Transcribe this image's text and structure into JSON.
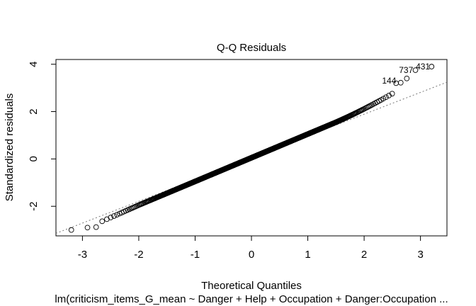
{
  "chart_data": {
    "type": "scatter",
    "title": "Q-Q Residuals",
    "xlabel": "Theoretical Quantiles",
    "ylabel": "Standardized residuals",
    "subtitle": "lm(criticism_items_G_mean ~ Danger + Help + Occupation + Danger:Occupation  ...",
    "xlim": [
      -3.47,
      3.47
    ],
    "ylim": [
      -3.25,
      4.2
    ],
    "xticks": [
      -3,
      -2,
      -1,
      0,
      1,
      2,
      3
    ],
    "yticks": [
      -2,
      0,
      2,
      4
    ],
    "xtick_labels": [
      "-3",
      "-2",
      "-1",
      "0",
      "1",
      "2",
      "3"
    ],
    "ytick_labels": [
      "-2",
      "0",
      "2",
      "4"
    ],
    "reference_line": {
      "intercept": 0.05,
      "slope": 0.92
    },
    "grid": false,
    "point_labels": [
      {
        "text": "431",
        "x": 3.22,
        "y": 3.9
      },
      {
        "text": "737",
        "x": 2.92,
        "y": 3.75
      },
      {
        "text": "144",
        "x": 2.62,
        "y": 3.3
      }
    ],
    "n_points": 900
  }
}
